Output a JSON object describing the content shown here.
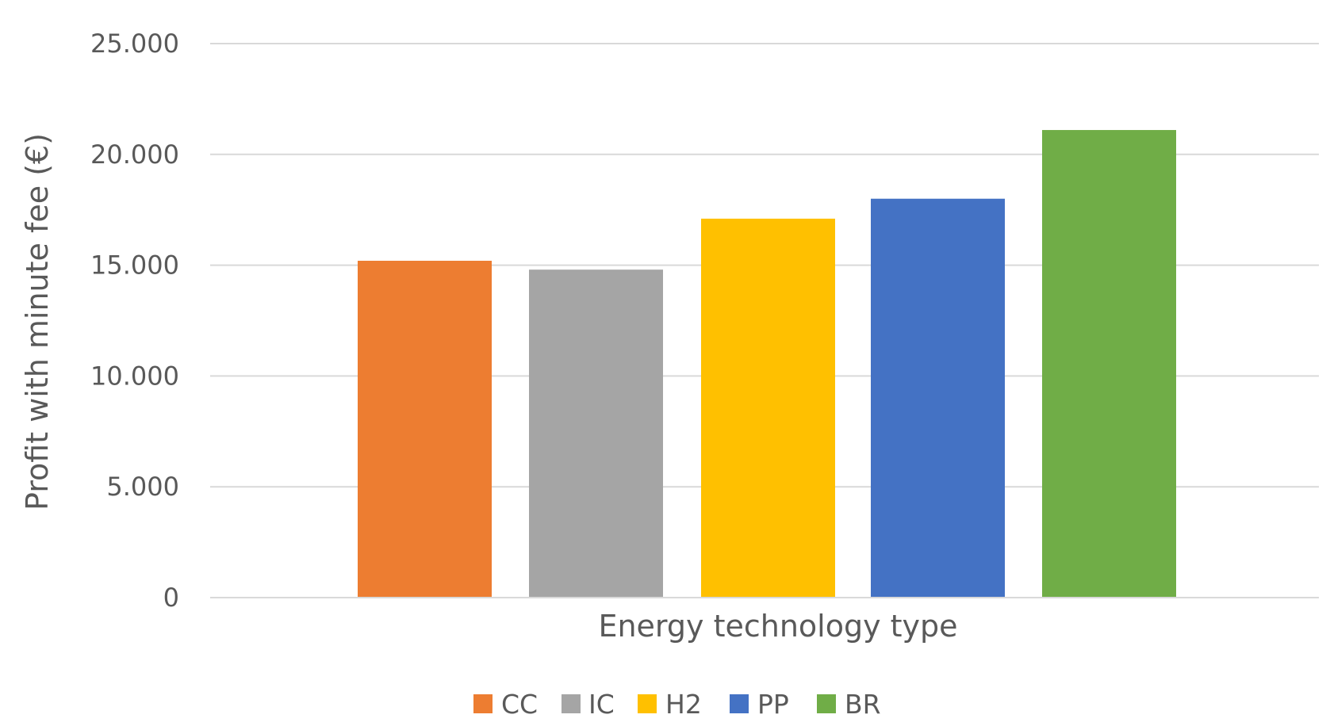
{
  "chart_data": {
    "type": "bar",
    "xlabel": "Energy technology type",
    "ylabel": "Profit with minute fee (€)",
    "ylim": [
      0,
      25000
    ],
    "yticks": [
      {
        "value": 0,
        "label": "0"
      },
      {
        "value": 5000,
        "label": "5.000"
      },
      {
        "value": 10000,
        "label": "10.000"
      },
      {
        "value": 15000,
        "label": "15.000"
      },
      {
        "value": 20000,
        "label": "20.000"
      },
      {
        "value": 25000,
        "label": "25.000"
      }
    ],
    "grid": true,
    "legend_position": "bottom",
    "series": [
      {
        "name": "CC",
        "values": [
          15200
        ],
        "color": "#ED7D31"
      },
      {
        "name": "IC",
        "values": [
          14800
        ],
        "color": "#A5A5A5"
      },
      {
        "name": "H2",
        "values": [
          17100
        ],
        "color": "#FFC000"
      },
      {
        "name": "PP",
        "values": [
          18000
        ],
        "color": "#4472C4"
      },
      {
        "name": "BR",
        "values": [
          21100
        ],
        "color": "#70AD47"
      }
    ]
  }
}
